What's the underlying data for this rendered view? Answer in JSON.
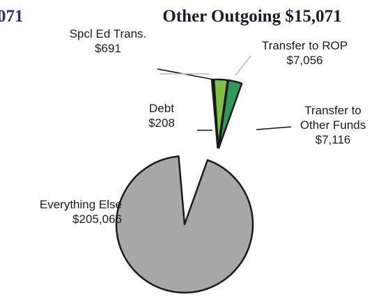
{
  "chart_data": {
    "type": "pie",
    "title": "Other Outgoing $15,071",
    "cropped_title": "071",
    "categories": [
      "Everything Else",
      "Debt",
      "Spcl Ed Trans.",
      "Transfer to ROP",
      "Transfer to Other Funds"
    ],
    "values": [
      205066,
      208,
      691,
      7056,
      7116
    ],
    "value_labels": [
      "$205,066",
      "$208",
      "$691",
      "$7,056",
      "$7,116"
    ],
    "colors": [
      "#a7a7a7",
      "#7dc242",
      "#7dc242",
      "#7dc242",
      "#2f9a5c"
    ],
    "exploded": [
      false,
      true,
      true,
      true,
      true
    ]
  }
}
